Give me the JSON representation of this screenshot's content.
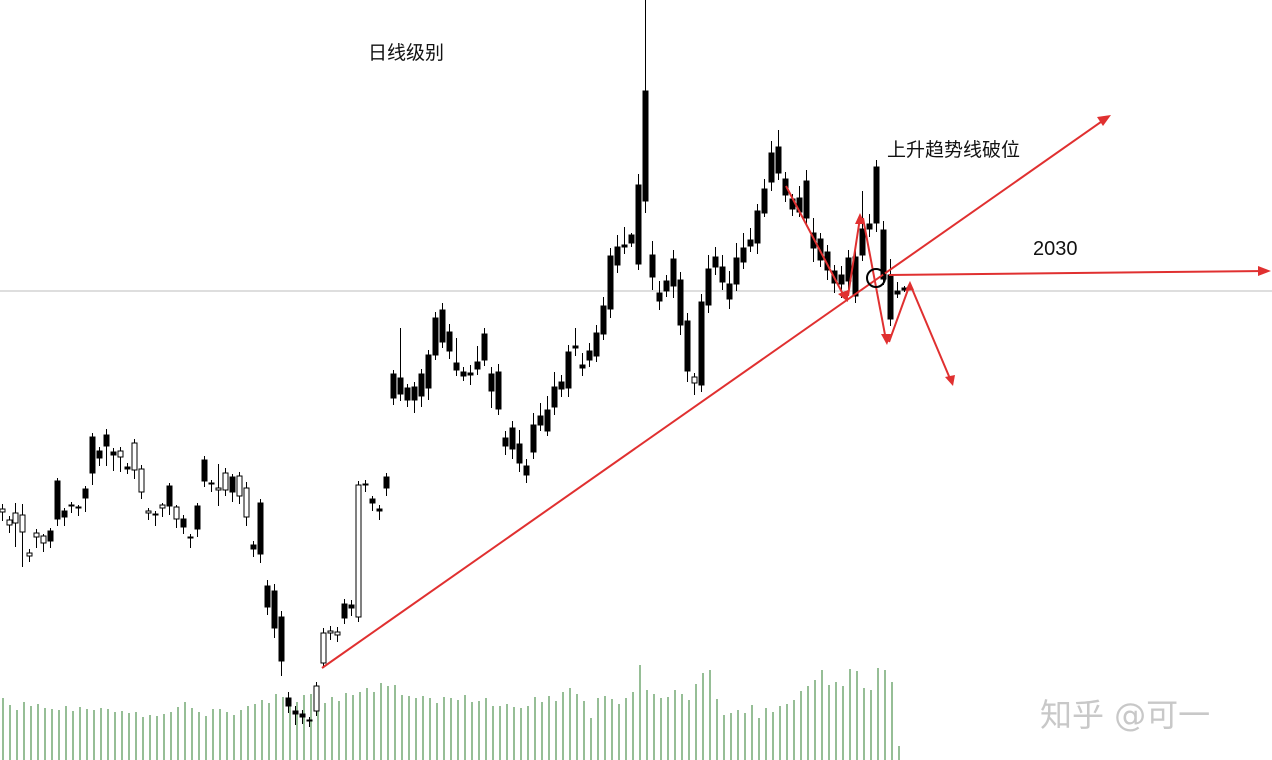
{
  "chart_data": {
    "type": "candlestick",
    "title": "日线级别",
    "annotations": [
      {
        "text": "上升趋势线破位"
      },
      {
        "text": "2030"
      }
    ],
    "reference_level": 2030,
    "colors": {
      "bull_body": "#ffffff",
      "bear_body": "#000000",
      "wick": "#000000",
      "volume": "#2e7d2e",
      "trendline": "#e03030",
      "guide": "#bbbbbb"
    },
    "candles": [
      [
        0,
        512,
        3.0,
        9,
        -5.0
      ],
      [
        7,
        525,
        5.0,
        8,
        -4.0
      ],
      [
        13,
        523,
        10.0,
        24,
        -10.0
      ],
      [
        20,
        532,
        17.0,
        35,
        -11.0
      ],
      [
        27,
        556,
        3.0,
        6,
        -4.0
      ],
      [
        34,
        537,
        4.0,
        11,
        -4.0
      ],
      [
        41,
        543,
        7.0,
        9,
        -2.0
      ],
      [
        48,
        541,
        -10.0,
        7,
        -3.0
      ],
      [
        55,
        519,
        -38.0,
        7,
        -3.0
      ],
      [
        62,
        517,
        -6.0,
        9,
        -3.0
      ],
      [
        69,
        506,
        -1.0,
        7,
        -3.0
      ],
      [
        76,
        508,
        1.0,
        8,
        -2.0
      ],
      [
        83,
        498,
        -9.0,
        14,
        -3.0
      ],
      [
        90,
        473,
        -36.0,
        12,
        -4.0
      ],
      [
        97,
        458,
        -7.0,
        8,
        -4.0
      ],
      [
        104,
        446,
        -11.0,
        20,
        -6.0
      ],
      [
        111,
        455,
        -3.0,
        16,
        -4.0
      ],
      [
        118,
        457,
        6.0,
        15,
        -4.0
      ],
      [
        125,
        469,
        -2.0,
        5,
        -4.0
      ],
      [
        132,
        470,
        27.0,
        9,
        -4.0
      ],
      [
        139,
        492,
        23.0,
        7,
        -4.0
      ],
      [
        146,
        513,
        2.0,
        7,
        -3.0
      ],
      [
        153,
        515,
        -1.0,
        11,
        -3.0
      ],
      [
        160,
        508,
        3.0,
        9,
        -2.0
      ],
      [
        167,
        506,
        -20.0,
        9,
        -3.0
      ],
      [
        174,
        519,
        12.0,
        9,
        -2.0
      ],
      [
        181,
        527,
        -8.0,
        7,
        -4.0
      ],
      [
        188,
        538,
        1.0,
        10,
        -3.0
      ],
      [
        195,
        529,
        -23.0,
        8,
        -3.0
      ],
      [
        202,
        481,
        -21.0,
        6,
        -4.0
      ],
      [
        209,
        484,
        1.0,
        8,
        -3.0
      ],
      [
        216,
        490,
        2.0,
        16,
        -24.0
      ],
      [
        223,
        490,
        17.0,
        6,
        -5.0
      ],
      [
        230,
        492,
        -15.0,
        10,
        -3.0
      ],
      [
        237,
        496,
        20.0,
        8,
        -4.0
      ],
      [
        244,
        517,
        29.0,
        9,
        -6.0
      ],
      [
        251,
        549,
        -4.0,
        8,
        -4.0
      ],
      [
        258,
        554,
        -51.0,
        9,
        -4.0
      ],
      [
        265,
        607,
        -21.0,
        8,
        -6.0
      ],
      [
        272,
        628,
        -37.0,
        10,
        -7.0
      ],
      [
        279,
        661,
        -44.0,
        15,
        -6.0
      ],
      [
        286,
        706,
        -8.0,
        7,
        -6.0
      ],
      [
        293,
        714,
        -3.0,
        11,
        -5.0
      ],
      [
        300,
        717,
        -3.0,
        7,
        -4.0
      ],
      [
        307,
        720,
        0.0,
        7,
        -3.0
      ],
      [
        314,
        711,
        25.0,
        5,
        -4.0
      ],
      [
        321,
        663,
        30.0,
        5,
        -5.0
      ],
      [
        328,
        633,
        2.0,
        7,
        -5.0
      ],
      [
        335,
        635,
        3.0,
        7,
        -5.0
      ],
      [
        342,
        618,
        -14.0,
        6,
        -5.0
      ],
      [
        349,
        608,
        -3.0,
        8,
        -5.0
      ],
      [
        356,
        617,
        132.0,
        5,
        -4.0
      ],
      [
        363,
        485,
        -1.0,
        7,
        -4.0
      ],
      [
        370,
        503,
        -4.0,
        8,
        -3.0
      ],
      [
        377,
        511,
        -2.0,
        9,
        -4.0
      ],
      [
        384,
        488,
        -11.0,
        8,
        -4.0
      ],
      [
        391,
        398,
        -24.0,
        7,
        -4.0
      ],
      [
        398,
        394,
        -16.0,
        7,
        -50.0
      ],
      [
        405,
        400,
        -12.0,
        7,
        -4.0
      ],
      [
        412,
        400,
        -13.0,
        13,
        -5.0
      ],
      [
        419,
        396,
        -22.0,
        11,
        -5.0
      ],
      [
        426,
        388,
        -33.0,
        12,
        -5.0
      ],
      [
        433,
        355,
        -37.0,
        5,
        -6.0
      ],
      [
        440,
        342,
        -32.0,
        6,
        -7.0
      ],
      [
        447,
        351,
        -19.0,
        8,
        -8.0
      ],
      [
        454,
        370,
        -7.0,
        6,
        -25.0
      ],
      [
        461,
        376,
        -4.0,
        5,
        -5.0
      ],
      [
        468,
        375,
        -2.0,
        10,
        -8.0
      ],
      [
        475,
        369,
        -7.0,
        6,
        -16.0
      ],
      [
        482,
        360,
        -26.0,
        6,
        -6.0
      ],
      [
        489,
        391,
        -17.0,
        17,
        -7.0
      ],
      [
        496,
        409,
        -37.0,
        6,
        -8.0
      ],
      [
        503,
        446,
        -8.0,
        9,
        -7.0
      ],
      [
        510,
        449,
        -21.0,
        10,
        -7.0
      ],
      [
        517,
        463,
        -19.0,
        9,
        -14.0
      ],
      [
        524,
        475,
        -9.0,
        8,
        -7.0
      ],
      [
        531,
        452,
        -27.0,
        7,
        -12.0
      ],
      [
        538,
        425,
        -9.0,
        6,
        -13.0
      ],
      [
        545,
        431,
        -21.0,
        5,
        -14.0
      ],
      [
        552,
        407,
        -20.0,
        8,
        -15.0
      ],
      [
        559,
        389,
        -7.0,
        8,
        -7.0
      ],
      [
        566,
        388,
        -36.0,
        9,
        -7.0
      ],
      [
        573,
        348,
        -2.0,
        8,
        -18.0
      ],
      [
        580,
        368,
        -3.0,
        8,
        -12.0
      ],
      [
        587,
        360,
        -9.0,
        7,
        -8.0
      ],
      [
        594,
        356,
        -23.0,
        6,
        -8.0
      ],
      [
        601,
        334,
        -28.0,
        6,
        -9.0
      ],
      [
        608,
        309,
        -53.0,
        9,
        -8.0
      ],
      [
        615,
        265,
        -18.0,
        8,
        -12.0
      ],
      [
        622,
        247,
        -2.0,
        7,
        -18.0
      ],
      [
        629,
        243,
        -8.0,
        4,
        -2.0
      ],
      [
        636,
        264,
        -79.0,
        6,
        -11.0
      ],
      [
        643,
        201,
        -110.0,
        12,
        -165.0
      ],
      [
        650,
        277,
        -22.0,
        13,
        -14.0
      ],
      [
        657,
        301,
        -8.0,
        9,
        -12.0
      ],
      [
        664,
        291,
        -10.0,
        6,
        -6.0
      ],
      [
        671,
        286,
        -27.0,
        12,
        -9.0
      ],
      [
        678,
        325,
        -45.0,
        10,
        -8.0
      ],
      [
        685,
        371,
        -50.0,
        11,
        -8.0
      ],
      [
        692,
        383,
        6.0,
        12,
        -4.0
      ],
      [
        699,
        385,
        -83.0,
        7,
        -8.0
      ],
      [
        706,
        305,
        -36.0,
        8,
        -14.0
      ],
      [
        713,
        267,
        -10.0,
        8,
        -10.0
      ],
      [
        720,
        282,
        -15.0,
        8,
        -12.0
      ],
      [
        727,
        299,
        -15.0,
        10,
        -13.0
      ],
      [
        734,
        284,
        -26.0,
        7,
        -15.0
      ],
      [
        741,
        262,
        -14.0,
        7,
        -15.0
      ],
      [
        748,
        246,
        -6.0,
        6,
        -12.0
      ],
      [
        755,
        243,
        -32.0,
        11,
        -7.0
      ],
      [
        762,
        213,
        -24.0,
        4,
        -10.0
      ],
      [
        769,
        182,
        -29.0,
        9,
        -12.0
      ],
      [
        776,
        173,
        -26.0,
        7,
        -17.0
      ],
      [
        783,
        195,
        -16.0,
        7,
        -7.0
      ],
      [
        790,
        209,
        -10.0,
        7,
        -5.0
      ],
      [
        797,
        212,
        -14.0,
        5,
        -12.0
      ],
      [
        804,
        218,
        -37.0,
        8,
        -11.0
      ],
      [
        811,
        248,
        -15.0,
        14,
        -15.0
      ],
      [
        818,
        260,
        -21.0,
        7,
        -6.0
      ],
      [
        825,
        270,
        -18.0,
        10,
        -7.0
      ],
      [
        832,
        283,
        -12.0,
        10,
        -6.0
      ],
      [
        839,
        284,
        -9.0,
        14,
        -9.0
      ],
      [
        846,
        281,
        -23.0,
        8,
        -8.0
      ],
      [
        853,
        296,
        -39.0,
        7,
        -9.0
      ],
      [
        860,
        255,
        -26.0,
        6,
        -38.0
      ],
      [
        867,
        229,
        -5.0,
        8,
        -10.0
      ],
      [
        874,
        223,
        -56.0,
        9,
        -7.0
      ],
      [
        881,
        279,
        -49.0,
        6,
        -9.0
      ],
      [
        888,
        319,
        -44.0,
        7,
        -16.0
      ],
      [
        895,
        294,
        -3.0,
        4,
        -9.0
      ],
      [
        902,
        290,
        -2.0,
        2,
        -2.0
      ]
    ],
    "volumes": [
      [
        3,
        698
      ],
      [
        10,
        705
      ],
      [
        17,
        710
      ],
      [
        24,
        702
      ],
      [
        31,
        706
      ],
      [
        38,
        704
      ],
      [
        45,
        708
      ],
      [
        52,
        709
      ],
      [
        59,
        710
      ],
      [
        66,
        706
      ],
      [
        73,
        711
      ],
      [
        80,
        707
      ],
      [
        87,
        709
      ],
      [
        94,
        710
      ],
      [
        101,
        708
      ],
      [
        108,
        709
      ],
      [
        115,
        712
      ],
      [
        122,
        711
      ],
      [
        129,
        713
      ],
      [
        136,
        712
      ],
      [
        143,
        717
      ],
      [
        150,
        715
      ],
      [
        157,
        716
      ],
      [
        164,
        714
      ],
      [
        171,
        712
      ],
      [
        178,
        707
      ],
      [
        185,
        702
      ],
      [
        192,
        708
      ],
      [
        199,
        712
      ],
      [
        206,
        716
      ],
      [
        213,
        709
      ],
      [
        220,
        709
      ],
      [
        227,
        712
      ],
      [
        234,
        715
      ],
      [
        241,
        710
      ],
      [
        248,
        706
      ],
      [
        255,
        704
      ],
      [
        262,
        700
      ],
      [
        269,
        703
      ],
      [
        276,
        694
      ],
      [
        283,
        697
      ],
      [
        290,
        699
      ],
      [
        297,
        702
      ],
      [
        304,
        695
      ],
      [
        311,
        694
      ],
      [
        318,
        702
      ],
      [
        325,
        703
      ],
      [
        332,
        697
      ],
      [
        339,
        701
      ],
      [
        346,
        693
      ],
      [
        353,
        695
      ],
      [
        360,
        692
      ],
      [
        367,
        688
      ],
      [
        374,
        692
      ],
      [
        381,
        683
      ],
      [
        388,
        686
      ],
      [
        395,
        685
      ],
      [
        402,
        695
      ],
      [
        409,
        696
      ],
      [
        416,
        698
      ],
      [
        423,
        696
      ],
      [
        430,
        698
      ],
      [
        437,
        703
      ],
      [
        444,
        697
      ],
      [
        451,
        698
      ],
      [
        458,
        700
      ],
      [
        465,
        695
      ],
      [
        472,
        702
      ],
      [
        479,
        701
      ],
      [
        486,
        698
      ],
      [
        493,
        706
      ],
      [
        500,
        706
      ],
      [
        507,
        704
      ],
      [
        514,
        707
      ],
      [
        521,
        708
      ],
      [
        528,
        706
      ],
      [
        535,
        697
      ],
      [
        542,
        702
      ],
      [
        549,
        696
      ],
      [
        556,
        701
      ],
      [
        563,
        692
      ],
      [
        570,
        688
      ],
      [
        577,
        694
      ],
      [
        584,
        701
      ],
      [
        591,
        718
      ],
      [
        598,
        698
      ],
      [
        605,
        696
      ],
      [
        612,
        699
      ],
      [
        619,
        704
      ],
      [
        626,
        698
      ],
      [
        633,
        692
      ],
      [
        640,
        665
      ],
      [
        647,
        690
      ],
      [
        654,
        694
      ],
      [
        661,
        698
      ],
      [
        668,
        697
      ],
      [
        675,
        690
      ],
      [
        682,
        694
      ],
      [
        689,
        700
      ],
      [
        696,
        684
      ],
      [
        703,
        673
      ],
      [
        710,
        670
      ],
      [
        717,
        699
      ],
      [
        724,
        715
      ],
      [
        731,
        713
      ],
      [
        738,
        710
      ],
      [
        745,
        713
      ],
      [
        752,
        705
      ],
      [
        759,
        718
      ],
      [
        766,
        708
      ],
      [
        773,
        712
      ],
      [
        780,
        706
      ],
      [
        787,
        704
      ],
      [
        794,
        700
      ],
      [
        801,
        691
      ],
      [
        808,
        686
      ],
      [
        815,
        680
      ],
      [
        822,
        670
      ],
      [
        829,
        685
      ],
      [
        836,
        682
      ],
      [
        843,
        686
      ],
      [
        850,
        669
      ],
      [
        857,
        671
      ],
      [
        864,
        688
      ],
      [
        871,
        690
      ],
      [
        878,
        668
      ],
      [
        885,
        670
      ],
      [
        892,
        682
      ],
      [
        899,
        746
      ]
    ]
  }
}
